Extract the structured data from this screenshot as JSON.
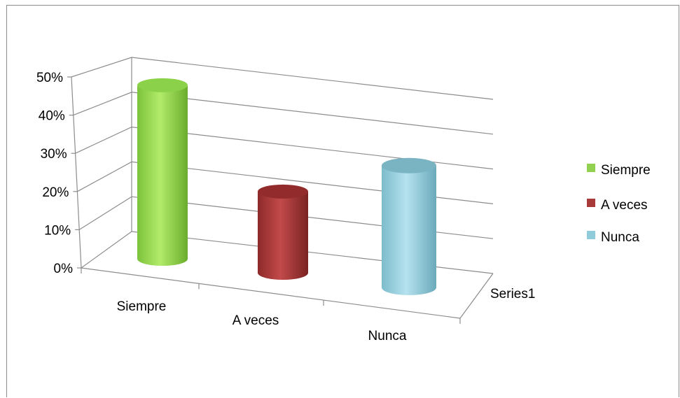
{
  "chart_data": {
    "type": "bar",
    "style": "3d-cylinder",
    "categories": [
      "Siempre",
      "A veces",
      "Nunca"
    ],
    "series_axis_label": "Series1",
    "values": [
      47,
      22,
      33
    ],
    "unit": "%",
    "ylim": [
      0,
      50
    ],
    "yticks": [
      "0%",
      "10%",
      "20%",
      "30%",
      "40%",
      "50%"
    ],
    "legend": {
      "position": "right",
      "items": [
        {
          "label": "Siempre",
          "color": "#92d050"
        },
        {
          "label": "A veces",
          "color": "#a83a3a"
        },
        {
          "label": "Nunca",
          "color": "#8fcbd9"
        }
      ]
    },
    "colors": {
      "siempre": "#92d050",
      "a_veces": "#a83a3a",
      "nunca": "#8fcbd9"
    },
    "grid": true
  }
}
